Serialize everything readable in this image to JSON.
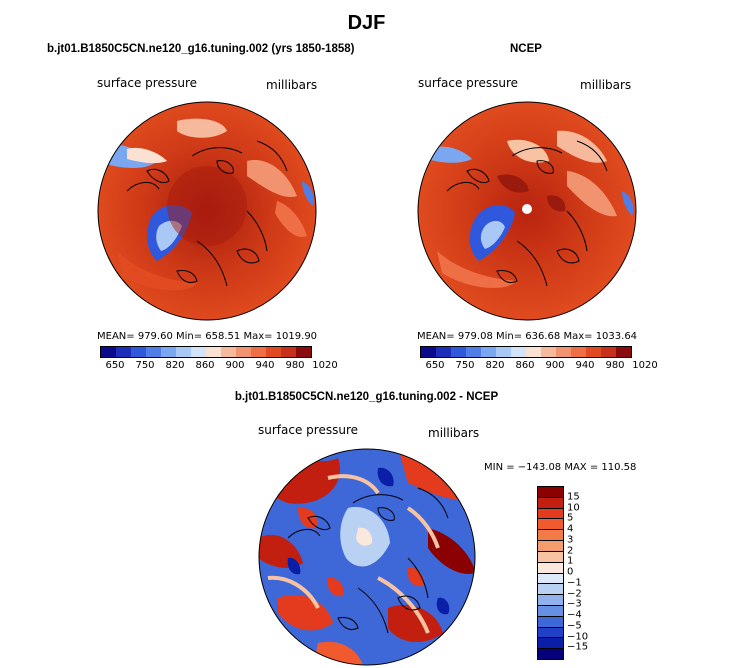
{
  "title": "DJF",
  "panels": {
    "model": {
      "header": "b.jt01.B1850C5CN.ne120_g16.tuning.002 (yrs 1850-1858)",
      "field_label": "surface pressure",
      "units_label": "millibars",
      "stats": "MEAN= 979.60   Min= 658.51   Max= 1019.90"
    },
    "obs": {
      "header": "NCEP",
      "field_label": "surface pressure",
      "units_label": "millibars",
      "stats": "MEAN= 979.08   Min= 636.68   Max= 1033.64"
    },
    "diff": {
      "header": "b.jt01.B1850C5CN.ne120_g16.tuning.002 - NCEP",
      "field_label": "surface pressure",
      "units_label": "millibars",
      "stats": "MIN = −143.08  MAX = 110.58"
    }
  },
  "colorbar_abs": {
    "colors": [
      "#0a0a8c",
      "#1c2fb8",
      "#2f58dc",
      "#4f7fe6",
      "#7ba6f0",
      "#a9c8f5",
      "#d3e3f8",
      "#fbe1d2",
      "#f6b99c",
      "#f29370",
      "#ee6e45",
      "#e24a22",
      "#c7301a",
      "#8b0c0c"
    ],
    "tick_labels": [
      "650",
      "750",
      "820",
      "860",
      "900",
      "940",
      "980",
      "1020"
    ]
  },
  "colorbar_diff": {
    "colors": [
      "#8b0000",
      "#c21f10",
      "#e43b1f",
      "#f05a2e",
      "#f27a47",
      "#f49c6e",
      "#f7c3a3",
      "#fbe8dc",
      "#dde9f8",
      "#b9d1f3",
      "#8fb2ec",
      "#6790e2",
      "#3e68d8",
      "#2140c8",
      "#0a1ea8",
      "#06007a"
    ],
    "tick_labels": [
      "15",
      "10",
      "5",
      "4",
      "3",
      "2",
      "1",
      "0",
      "−1",
      "−2",
      "−3",
      "−4",
      "−5",
      "−10",
      "−15"
    ]
  }
}
